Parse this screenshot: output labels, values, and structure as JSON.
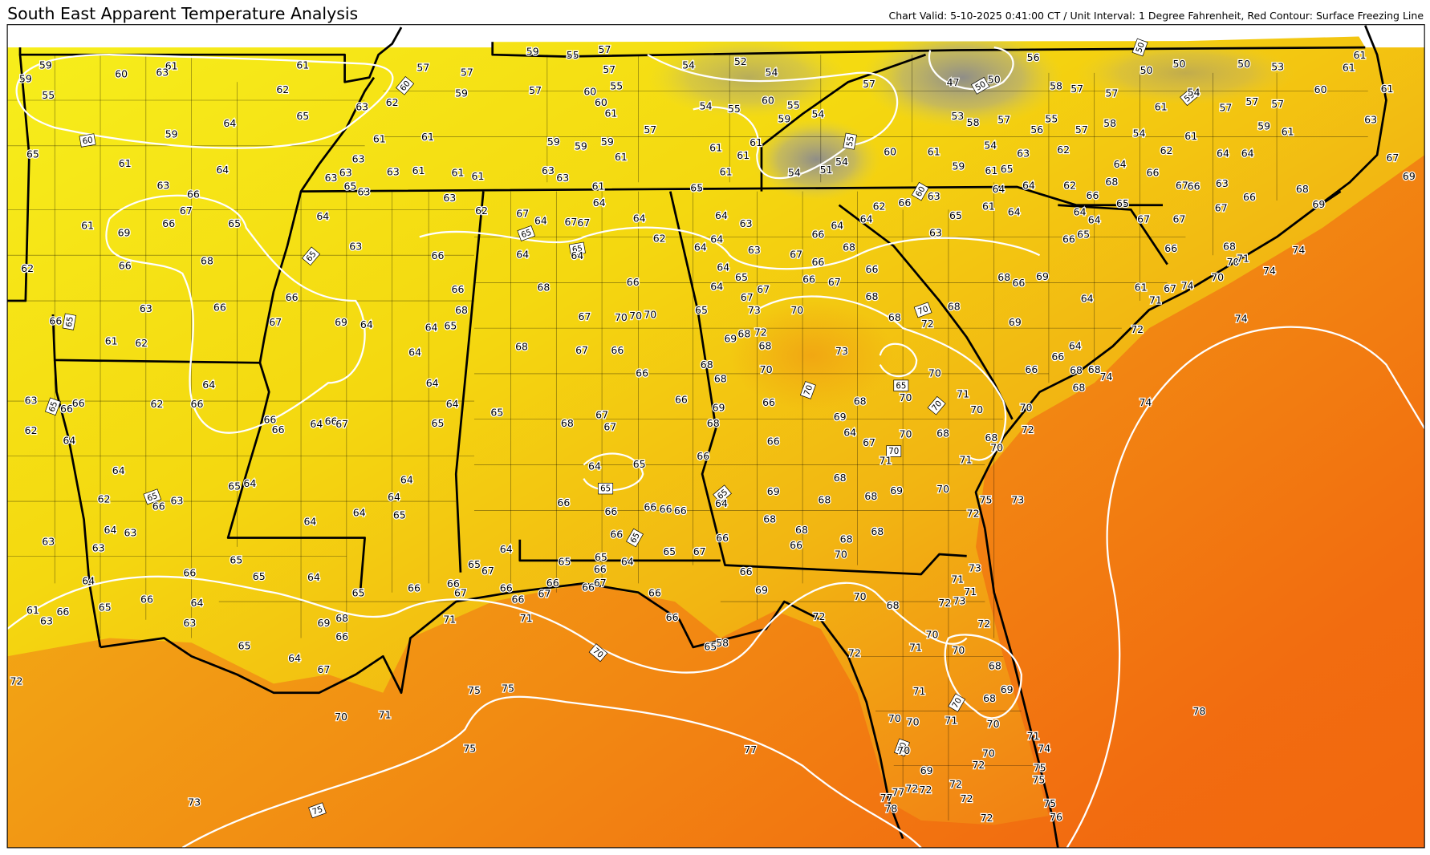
{
  "header": {
    "title": "South East Apparent Temperature Analysis",
    "subtitle": "Chart Valid: 5-10-2025 0:41:00 CT / Unit Interval: 1 Degree Fahrenheit, Red Contour: Surface Freezing Line"
  },
  "stations": [
    59,
    59,
    55,
    60,
    61,
    63,
    61,
    62,
    63,
    64,
    65,
    59,
    65,
    61,
    64,
    63,
    66,
    67,
    65,
    66,
    61,
    69,
    68,
    66,
    62,
    66,
    63,
    66,
    67,
    69,
    64,
    61,
    62,
    66,
    64,
    62,
    66,
    63,
    66,
    66,
    62,
    64,
    66,
    66,
    64,
    66,
    67,
    64,
    65,
    64,
    62,
    66,
    63,
    64,
    63,
    63,
    63,
    64,
    64,
    65,
    64,
    64,
    65,
    65,
    64,
    66,
    64,
    66,
    64,
    65,
    61,
    66,
    63,
    63,
    69,
    68,
    66,
    65,
    64,
    67,
    72,
    70,
    71,
    73,
    75,
    75,
    75,
    77,
    78,
    57,
    57,
    59,
    62,
    61,
    61,
    63,
    63,
    63,
    65,
    63,
    63,
    61,
    61,
    61,
    63,
    62,
    64,
    63,
    66,
    66,
    68,
    64,
    65,
    64,
    64,
    64,
    65,
    59,
    55,
    57,
    57,
    55,
    57,
    60,
    60,
    61,
    57,
    59,
    59,
    59,
    61,
    63,
    63,
    61,
    65,
    67,
    64,
    67,
    67,
    64,
    64,
    62,
    64,
    64,
    68,
    66,
    67,
    70,
    70,
    70,
    68,
    67,
    66,
    66,
    66,
    65,
    68,
    67,
    67,
    64,
    65,
    66,
    66,
    66,
    66,
    66,
    66,
    65,
    67,
    64,
    65,
    65,
    66,
    64,
    65,
    67,
    66,
    67,
    66,
    65,
    66,
    66,
    66,
    67,
    67,
    66,
    66,
    66,
    71,
    71,
    58,
    65,
    54,
    52,
    54,
    57,
    47,
    50,
    56,
    50,
    50,
    50,
    53,
    61,
    61,
    61,
    60,
    63,
    58,
    57,
    57,
    54,
    57,
    57,
    57,
    61,
    60,
    55,
    54,
    55,
    54,
    59,
    53,
    58,
    57,
    55,
    56,
    57,
    58,
    59,
    61,
    54,
    61,
    54,
    62,
    62,
    64,
    64,
    67,
    69,
    61,
    60,
    61,
    61,
    61,
    61,
    54,
    51,
    54,
    59,
    61,
    65,
    63,
    64,
    66,
    67,
    66,
    63,
    64,
    62,
    64,
    68,
    66,
    65,
    67,
    66,
    68,
    69,
    66,
    62,
    63,
    64,
    61,
    64,
    64,
    64,
    67,
    67,
    63,
    65,
    66,
    65,
    66,
    68,
    70,
    71,
    74,
    74,
    74,
    70,
    74,
    71,
    67,
    61,
    64,
    69,
    66,
    68,
    69,
    72,
    64,
    66,
    68,
    68,
    74,
    68,
    66,
    74,
    70,
    72,
    68,
    70,
    71,
    73,
    75,
    72,
    70,
    73,
    71,
    71,
    73,
    72,
    72,
    70,
    71,
    70,
    68,
    69,
    68,
    70,
    71,
    71,
    70,
    70,
    70,
    71,
    74,
    70,
    72,
    75,
    75,
    69,
    72,
    72,
    72,
    77,
    77,
    78,
    72,
    75,
    76,
    72,
    72,
    72,
    70,
    68,
    64,
    66,
    68,
    67,
    66,
    66,
    66,
    67,
    68,
    68,
    70,
    68,
    72,
    73,
    72,
    68,
    69,
    68,
    73,
    70,
    70,
    71,
    70,
    70,
    68,
    66,
    64,
    69,
    67,
    70,
    68,
    71,
    66,
    68,
    69,
    68,
    68,
    69,
    68,
    68,
    68,
    68,
    66,
    70,
    69,
    66,
    66,
    64,
    66,
    68,
    69,
    68,
    68,
    64,
    64,
    65,
    67,
    67,
    65,
    64,
    64,
    63,
    63,
    64
  ],
  "contour_labels": [
    60,
    60,
    65,
    65,
    65,
    65,
    55,
    50,
    50,
    55,
    60,
    65,
    65,
    70,
    65,
    70,
    65,
    65,
    65,
    70,
    70,
    70,
    70,
    70,
    75
  ]
}
